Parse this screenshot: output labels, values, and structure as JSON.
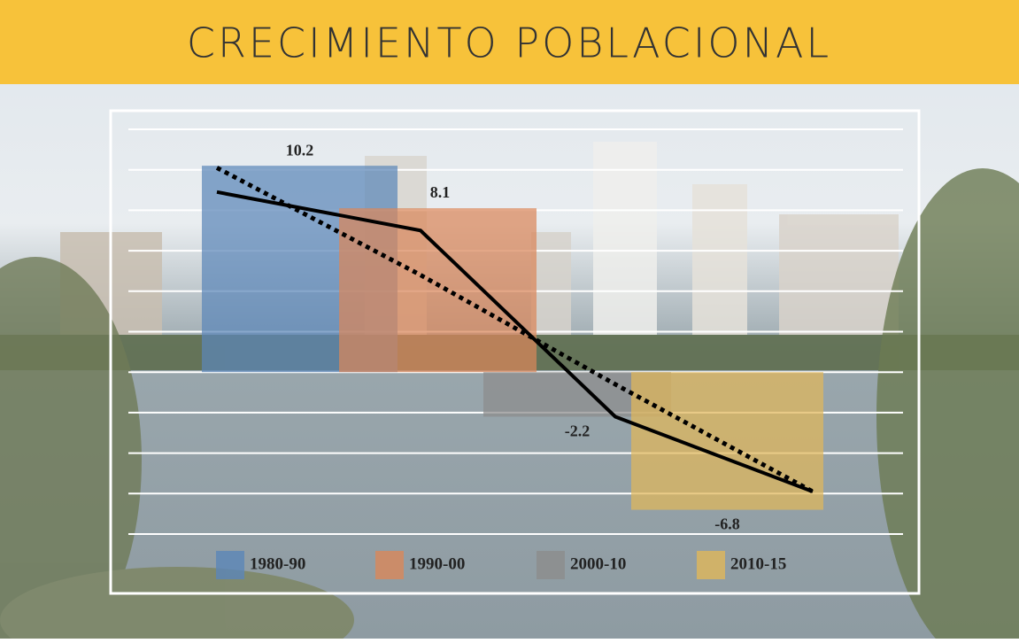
{
  "chart_data": {
    "type": "bar",
    "title": "CRECIMIENTO POBLACIONAL",
    "categories": [
      "1980-90",
      "1990-00",
      "2000-10",
      "2010-15"
    ],
    "values": [
      10.2,
      8.1,
      -2.2,
      -6.8
    ],
    "colors": [
      "#5b86b8",
      "#d9875a",
      "#8c8c8c",
      "#e0b75a"
    ],
    "lines": [
      {
        "color": "#000000",
        "dashed": false,
        "values": [
          8.9,
          7.0,
          -2.2,
          -5.9
        ]
      },
      {
        "color": "#000000",
        "dashed": true,
        "values": [
          10.1,
          4.8,
          -0.6,
          -5.9
        ]
      }
    ],
    "ylim": [
      -8,
      12
    ],
    "yticks": [
      -8,
      -6,
      -4,
      -2,
      0,
      2,
      4,
      6,
      8,
      10,
      12
    ],
    "grid": true
  }
}
